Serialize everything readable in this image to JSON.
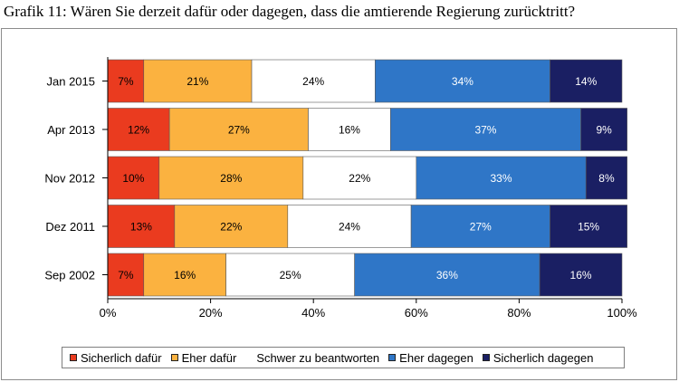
{
  "title": "Grafik 11: Wären Sie derzeit dafür oder dagegen, dass die amtierende Regierung zurücktritt?",
  "chart_data": {
    "type": "bar",
    "orientation": "horizontal",
    "stacked": true,
    "percent_scale": true,
    "categories": [
      "Jan 2015",
      "Apr 2013",
      "Nov 2012",
      "Dez 2011",
      "Sep 2002"
    ],
    "series": [
      {
        "name": "Sicherlich dafür",
        "color": "#ea3b1f",
        "values": [
          7,
          12,
          10,
          13,
          7
        ],
        "labels": [
          "7%",
          "12%",
          "10%",
          "13%",
          "7%"
        ]
      },
      {
        "name": "Eher dafür",
        "color": "#fbb240",
        "values": [
          21,
          27,
          28,
          22,
          16
        ],
        "labels": [
          "21%",
          "27%",
          "28%",
          "22%",
          "16%"
        ]
      },
      {
        "name": "Schwer zu beantworten",
        "color": "#ffffff",
        "values": [
          24,
          16,
          22,
          24,
          25
        ],
        "labels": [
          "24%",
          "16%",
          "22%",
          "24%",
          "25%"
        ]
      },
      {
        "name": "Eher dagegen",
        "color": "#2f76c7",
        "values": [
          34,
          37,
          33,
          27,
          36
        ],
        "labels": [
          "34%",
          "37%",
          "33%",
          "27%",
          "36%"
        ]
      },
      {
        "name": "Sicherlich dagegen",
        "color": "#1a1f63",
        "values": [
          14,
          9,
          8,
          15,
          16
        ],
        "labels": [
          "14%",
          "9%",
          "8%",
          "15%",
          "16%"
        ]
      }
    ],
    "xlim": [
      0,
      100
    ],
    "xticks": [
      "0%",
      "20%",
      "40%",
      "60%",
      "80%",
      "100%"
    ],
    "grid": false,
    "legend_position": "bottom"
  }
}
